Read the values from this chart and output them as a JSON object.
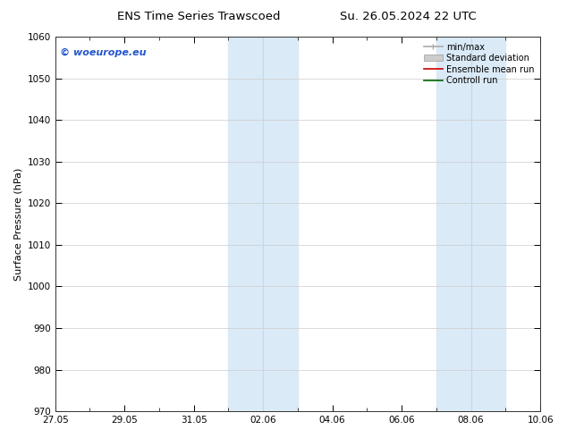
{
  "title_left": "ENS Time Series Trawscoed",
  "title_right": "Su. 26.05.2024 22 UTC",
  "ylabel": "Surface Pressure (hPa)",
  "ylim": [
    970,
    1060
  ],
  "yticks": [
    970,
    980,
    990,
    1000,
    1010,
    1020,
    1030,
    1040,
    1050,
    1060
  ],
  "xtick_labels": [
    "27.05",
    "29.05",
    "31.05",
    "02.06",
    "04.06",
    "06.06",
    "08.06",
    "10.06"
  ],
  "xtick_positions": [
    0,
    2,
    4,
    6,
    8,
    10,
    12,
    14
  ],
  "xlim": [
    0,
    14
  ],
  "shaded_bands": [
    {
      "x_start": 5.0,
      "x_end": 6.0
    },
    {
      "x_start": 6.0,
      "x_end": 7.0
    },
    {
      "x_start": 11.0,
      "x_end": 12.0
    },
    {
      "x_start": 12.0,
      "x_end": 13.0
    }
  ],
  "band_color": "#daeaf7",
  "band_separator_color": "#c0d8ee",
  "grid_color": "#cccccc",
  "watermark_text": "© woeurope.eu",
  "watermark_color": "#2255cc",
  "legend_items": [
    {
      "label": "min/max",
      "color": "#aaaaaa",
      "lw": 1.2
    },
    {
      "label": "Standard deviation",
      "color": "#cccccc",
      "lw": 6
    },
    {
      "label": "Ensemble mean run",
      "color": "#cc0000",
      "lw": 1.2
    },
    {
      "label": "Controll run",
      "color": "#006600",
      "lw": 1.2
    }
  ],
  "bg_color": "#ffffff",
  "spine_color": "#333333",
  "title_fontsize": 9.5,
  "tick_fontsize": 7.5,
  "ylabel_fontsize": 8,
  "legend_fontsize": 7,
  "watermark_fontsize": 8
}
